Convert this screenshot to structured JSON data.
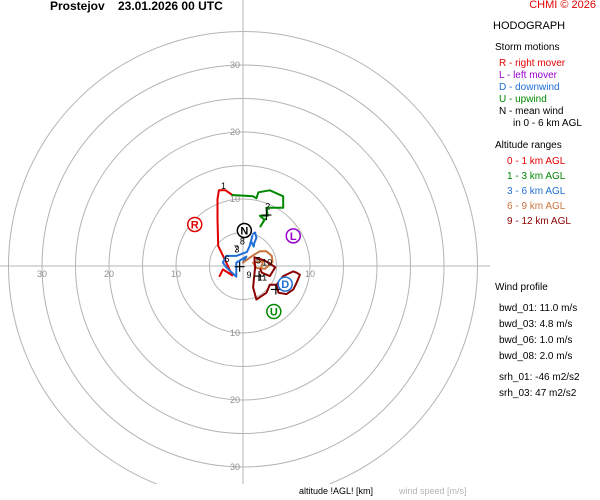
{
  "header": {
    "station": "Prostejov",
    "datetime": "23.01.2026 00 UTC",
    "credit": "CHMI © 2026"
  },
  "panel": {
    "title": "HODOGRAPH",
    "storm_motions": {
      "title": "Storm motions",
      "items": [
        {
          "text": "R - right mover",
          "color": "#e00000"
        },
        {
          "text": "L - left mover",
          "color": "#9900cc"
        },
        {
          "text": "D - downwind",
          "color": "#1f6fd6"
        },
        {
          "text": "U - upwind",
          "color": "#008800"
        },
        {
          "text": "N - mean wind",
          "color": "#000000"
        }
      ],
      "note": "in 0 - 6 km AGL"
    },
    "altitude_ranges": {
      "title": "Altitude ranges",
      "items": [
        {
          "text": "0 - 1 km AGL",
          "color": "#e00000"
        },
        {
          "text": "1 - 3 km AGL",
          "color": "#008800"
        },
        {
          "text": "3 - 6 km AGL",
          "color": "#1f6fd6"
        },
        {
          "text": "6 - 9 km AGL",
          "color": "#c8743c"
        },
        {
          "text": "9 - 12 km AGL",
          "color": "#8b0000"
        }
      ]
    },
    "wind_profile": {
      "title": "Wind profile",
      "items": [
        "bwd_01: 11.0 m/s",
        "bwd_03: 4.8 m/s",
        "bwd_06: 1.0 m/s",
        "bwd_08: 2.0 m/s"
      ],
      "srh": [
        "srh_01: -46 m2/s2",
        "srh_03: 47 m2/s2"
      ]
    }
  },
  "footer": {
    "altitude_label": "altitude !AGL! [km]",
    "wind_speed_label": "wind speed [m/s]"
  },
  "chart_data": {
    "type": "line",
    "title": "HODOGRAPH",
    "rings": [
      5,
      10,
      15,
      20,
      25,
      30,
      35
    ],
    "ring_labels": [
      10,
      20,
      30
    ],
    "axis_tick_labels": {
      "up": [
        "10",
        "20",
        "30"
      ],
      "down": [
        "10",
        "20",
        "30"
      ],
      "left": [
        "10",
        "20",
        "30"
      ],
      "right": [
        "10"
      ]
    },
    "series": [
      {
        "name": "0 - 1 km AGL",
        "color": "#e00000",
        "points": [
          [
            -3.5,
            -1.5
          ],
          [
            -3,
            -0.5
          ],
          [
            -1.6,
            -1.4
          ],
          [
            -2.5,
            0.5
          ],
          [
            -3.7,
            3
          ],
          [
            -3.8,
            7
          ],
          [
            -3.8,
            10
          ],
          [
            -3.6,
            11.3
          ],
          [
            -2.6,
            11.3
          ],
          [
            -1.6,
            10.6
          ]
        ]
      },
      {
        "name": "1 - 3 km AGL",
        "color": "#008800",
        "points": [
          [
            -1.6,
            10.6
          ],
          [
            1.5,
            10.4
          ],
          [
            2,
            10.1
          ],
          [
            2.3,
            11
          ],
          [
            4,
            11.3
          ],
          [
            6,
            10.4
          ],
          [
            6,
            8.7
          ],
          [
            4,
            8.7
          ],
          [
            3.5,
            8.7
          ],
          [
            3.7,
            7.5
          ],
          [
            2.5,
            7.5
          ],
          [
            3.2,
            6.9
          ],
          [
            2.6,
            5.9
          ],
          [
            3.3,
            7
          ]
        ]
      },
      {
        "name": "3 - 6 km AGL",
        "color": "#1f6fd6",
        "points": [
          [
            1.5,
            4.8
          ],
          [
            1.8,
            5
          ],
          [
            2,
            4.2
          ],
          [
            1.7,
            3.5
          ],
          [
            1.6,
            2.9
          ],
          [
            1.2,
            3.7
          ],
          [
            1.4,
            4.5
          ],
          [
            1,
            3
          ],
          [
            0.6,
            2.1
          ],
          [
            -1,
            1.5
          ],
          [
            -2.5,
            1.5
          ],
          [
            -3,
            0.5
          ],
          [
            -2.5,
            -0.2
          ],
          [
            -1,
            -1.6
          ],
          [
            -1,
            0.5
          ],
          [
            0.5,
            1.4
          ],
          [
            0,
            0.5
          ]
        ]
      },
      {
        "name": "6 - 9 km AGL",
        "color": "#c8743c",
        "points": [
          [
            0,
            0.5
          ],
          [
            1.5,
            1.6
          ],
          [
            2.5,
            2.2
          ],
          [
            3.5,
            2.2
          ],
          [
            4.3,
            1.5
          ],
          [
            4.4,
            0.6
          ],
          [
            3.3,
            -0.4
          ],
          [
            2,
            -0.3
          ],
          [
            1.5,
            0.5
          ],
          [
            3,
            0.7
          ],
          [
            2.6,
            -0.5
          ]
        ]
      },
      {
        "name": "9 - 12 km AGL",
        "color": "#8b0000",
        "points": [
          [
            2.6,
            -0.5
          ],
          [
            2.8,
            -1
          ],
          [
            4,
            -1.5
          ],
          [
            4.8,
            -0.2
          ],
          [
            3.8,
            0.5
          ],
          [
            3,
            0.9
          ],
          [
            1.7,
            1.3
          ],
          [
            1.8,
            -0.2
          ],
          [
            1.5,
            -3.2
          ],
          [
            2,
            -5
          ],
          [
            3.5,
            -4
          ],
          [
            4,
            -2.8
          ],
          [
            5,
            -2.8
          ],
          [
            6,
            -1.5
          ],
          [
            7.5,
            -0.8
          ],
          [
            8,
            -1
          ],
          [
            8.5,
            -1.3
          ],
          [
            8,
            -2.5
          ],
          [
            7.5,
            -3.5
          ],
          [
            6.5,
            -4.2
          ],
          [
            5.3,
            -4
          ],
          [
            5,
            -2.8
          ]
        ]
      }
    ],
    "altitude_labels": [
      {
        "text": "1",
        "x": -2.9,
        "y": 11.5
      },
      {
        "text": "2",
        "x": 3.7,
        "y": 8.4
      },
      {
        "text": "3",
        "x": -0.9,
        "y": 2.0
      },
      {
        "text": "5",
        "x": 2.3,
        "y": 0.4
      },
      {
        "text": "6",
        "x": -2.4,
        "y": 0.6
      },
      {
        "text": "7",
        "x": -1.0,
        "y": 2.1
      },
      {
        "text": "8",
        "x": -0.1,
        "y": 3.2
      },
      {
        "text": "9",
        "x": 0.9,
        "y": -1.8
      },
      {
        "text": "10",
        "x": 3.6,
        "y": 0.1
      },
      {
        "text": "11",
        "x": 2.9,
        "y": -2.2
      }
    ],
    "crosshair_markers": [
      [
        -0.5,
        -0.1
      ],
      [
        3.5,
        7.6
      ],
      [
        2.4,
        -1.5
      ],
      [
        4.9,
        -3.5
      ]
    ],
    "storm_markers": [
      {
        "label": "R",
        "x": -7.2,
        "y": 6.2,
        "color": "#e00000"
      },
      {
        "label": "L",
        "x": 7.5,
        "y": 4.5,
        "color": "#9900cc"
      },
      {
        "label": "D",
        "x": 6.3,
        "y": -2.7,
        "color": "#1f6fd6"
      },
      {
        "label": "U",
        "x": 4.6,
        "y": -6.8,
        "color": "#008800"
      },
      {
        "label": "N",
        "x": 0.2,
        "y": 5.3,
        "color": "#000000"
      }
    ]
  }
}
